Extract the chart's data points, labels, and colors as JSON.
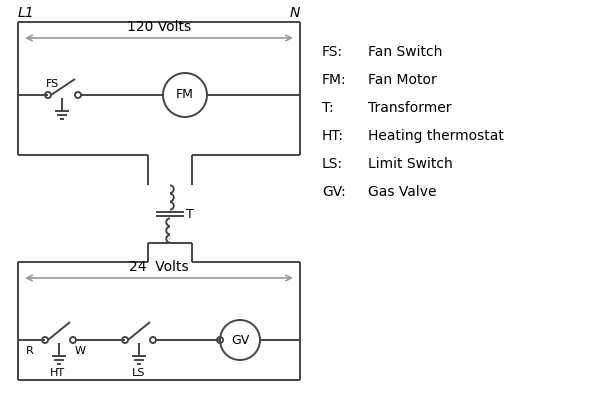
{
  "bg_color": "#ffffff",
  "line_color": "#444444",
  "arrow_color": "#999999",
  "text_color": "#000000",
  "legend": {
    "FS": "Fan Switch",
    "FM": "Fan Motor",
    "T": "Transformer",
    "HT": "Heating thermostat",
    "LS": "Limit Switch",
    "GV": "Gas Valve"
  },
  "figsize": [
    5.9,
    4.0
  ],
  "dpi": 100
}
